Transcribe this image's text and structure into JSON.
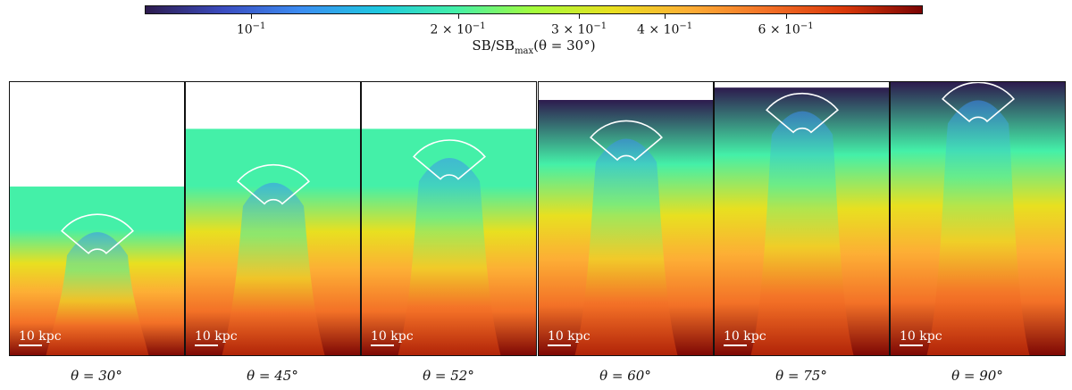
{
  "chart_data": {
    "type": "heatmap",
    "colorbar": {
      "colormap": [
        "#2d1b4e",
        "#3b4cc0",
        "#3c8df2",
        "#1fc8e0",
        "#44f0a8",
        "#a4fc3c",
        "#e8e020",
        "#fdae35",
        "#f37127",
        "#d9380a",
        "#7a0403"
      ],
      "scale": "log",
      "range": [
        0.07,
        0.95
      ],
      "ticks": [
        {
          "value": 0.1,
          "mantissa": "",
          "exponent": "−1"
        },
        {
          "value": 0.2,
          "mantissa": "2 × ",
          "exponent": "−1"
        },
        {
          "value": 0.3,
          "mantissa": "3 × ",
          "exponent": "−1"
        },
        {
          "value": 0.4,
          "mantissa": "4 × ",
          "exponent": "−1"
        },
        {
          "value": 0.6,
          "mantissa": "6 × ",
          "exponent": "−1"
        }
      ],
      "label_main": "SB/SB",
      "label_sub": "max",
      "label_tail": "(θ = 30°)"
    },
    "scalebar_label": "10 kpc",
    "panels": [
      {
        "theta": "θ = 30°",
        "top_fraction": 0.38,
        "sector_fraction": 0.52
      },
      {
        "theta": "θ = 45°",
        "top_fraction": 0.17,
        "sector_fraction": 0.34
      },
      {
        "theta": "θ = 52°",
        "top_fraction": 0.17,
        "sector_fraction": 0.25
      },
      {
        "theta": "θ = 60°",
        "top_fraction": 0.065,
        "sector_fraction": 0.18
      },
      {
        "theta": "θ = 75°",
        "top_fraction": 0.02,
        "sector_fraction": 0.08
      },
      {
        "theta": "θ = 90°",
        "top_fraction": 0.0,
        "sector_fraction": 0.04
      }
    ]
  }
}
